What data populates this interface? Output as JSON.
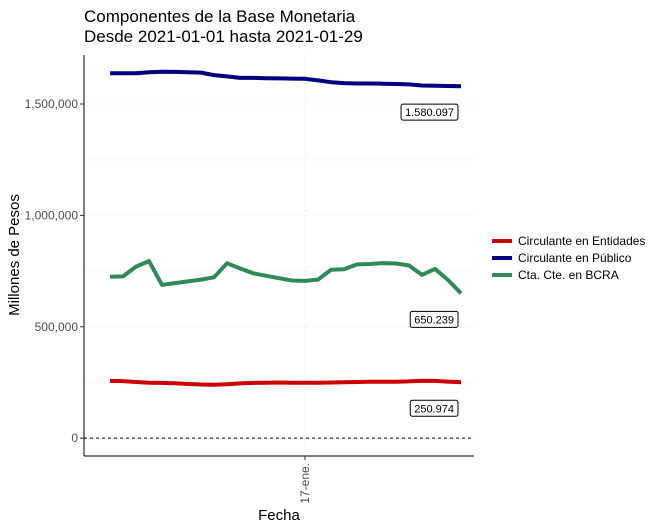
{
  "chart_data": {
    "type": "line",
    "title": "Componentes de la Base Monetaria",
    "subtitle": "Desde 2021-01-01 hasta 2021-01-29",
    "xlabel": "Fecha",
    "ylabel": "Millones de Pesos",
    "x_ticks": [
      {
        "date": "2021-01-17",
        "label": "17-ene."
      }
    ],
    "y_ticks": [
      {
        "value": 0,
        "label": "0"
      },
      {
        "value": 500000,
        "label": "500,000"
      },
      {
        "value": 1000000,
        "label": "1,000,000"
      },
      {
        "value": 1500000,
        "label": "1,500,000"
      }
    ],
    "xlim": [
      "2020-12-31",
      "2021-01-30"
    ],
    "ylim": [
      -80000,
      1720000
    ],
    "grid": "dotted major and minor horizontal and vertical lines",
    "zero_line": "dashed horizontal line at 0",
    "legend_position": "right",
    "series": [
      {
        "name": "Circulante en Entidades",
        "color": "#cc0000",
        "points": [
          [
            "2021-01-02",
            257000
          ],
          [
            "2021-01-03",
            256000
          ],
          [
            "2021-01-04",
            252000
          ],
          [
            "2021-01-05",
            249000
          ],
          [
            "2021-01-06",
            248000
          ],
          [
            "2021-01-07",
            247000
          ],
          [
            "2021-01-08",
            243000
          ],
          [
            "2021-01-09",
            241000
          ],
          [
            "2021-01-10",
            240000
          ],
          [
            "2021-01-11",
            242000
          ],
          [
            "2021-01-12",
            246000
          ],
          [
            "2021-01-13",
            248000
          ],
          [
            "2021-01-14",
            249000
          ],
          [
            "2021-01-15",
            250000
          ],
          [
            "2021-01-16",
            249000
          ],
          [
            "2021-01-17",
            249000
          ],
          [
            "2021-01-18",
            249000
          ],
          [
            "2021-01-19",
            250000
          ],
          [
            "2021-01-20",
            251000
          ],
          [
            "2021-01-21",
            252000
          ],
          [
            "2021-01-22",
            253000
          ],
          [
            "2021-01-23",
            253000
          ],
          [
            "2021-01-24",
            253000
          ],
          [
            "2021-01-25",
            255000
          ],
          [
            "2021-01-26",
            258000
          ],
          [
            "2021-01-27",
            257000
          ],
          [
            "2021-01-28",
            254000
          ],
          [
            "2021-01-29",
            250974
          ]
        ],
        "last_label": "250.974"
      },
      {
        "name": "Circulante en Público",
        "color": "#000080",
        "points": [
          [
            "2021-01-02",
            1638000
          ],
          [
            "2021-01-04",
            1638000
          ],
          [
            "2021-01-05",
            1643000
          ],
          [
            "2021-01-06",
            1645000
          ],
          [
            "2021-01-07",
            1644000
          ],
          [
            "2021-01-08",
            1643000
          ],
          [
            "2021-01-09",
            1641000
          ],
          [
            "2021-01-10",
            1630000
          ],
          [
            "2021-01-11",
            1624000
          ],
          [
            "2021-01-12",
            1617000
          ],
          [
            "2021-01-13",
            1617000
          ],
          [
            "2021-01-14",
            1616000
          ],
          [
            "2021-01-15",
            1615000
          ],
          [
            "2021-01-16",
            1614000
          ],
          [
            "2021-01-17",
            1613000
          ],
          [
            "2021-01-18",
            1606000
          ],
          [
            "2021-01-19",
            1598000
          ],
          [
            "2021-01-20",
            1594000
          ],
          [
            "2021-01-21",
            1592000
          ],
          [
            "2021-01-22",
            1592000
          ],
          [
            "2021-01-23",
            1591000
          ],
          [
            "2021-01-24",
            1590000
          ],
          [
            "2021-01-25",
            1588000
          ],
          [
            "2021-01-26",
            1583000
          ],
          [
            "2021-01-27",
            1582000
          ],
          [
            "2021-01-28",
            1581000
          ],
          [
            "2021-01-29",
            1580097
          ]
        ],
        "last_label": "1.580.097"
      },
      {
        "name": "Cta. Cte. en BCRA",
        "color": "#2e8b57",
        "points": [
          [
            "2021-01-02",
            725000
          ],
          [
            "2021-01-03",
            726000
          ],
          [
            "2021-01-04",
            770000
          ],
          [
            "2021-01-05",
            795000
          ],
          [
            "2021-01-06",
            688000
          ],
          [
            "2021-01-09",
            712000
          ],
          [
            "2021-01-10",
            722000
          ],
          [
            "2021-01-11",
            785000
          ],
          [
            "2021-01-12",
            762000
          ],
          [
            "2021-01-13",
            740000
          ],
          [
            "2021-01-15",
            718000
          ],
          [
            "2021-01-16",
            708000
          ],
          [
            "2021-01-17",
            706000
          ],
          [
            "2021-01-18",
            712000
          ],
          [
            "2021-01-19",
            756000
          ],
          [
            "2021-01-20",
            758000
          ],
          [
            "2021-01-21",
            780000
          ],
          [
            "2021-01-22",
            782000
          ],
          [
            "2021-01-23",
            786000
          ],
          [
            "2021-01-24",
            784000
          ],
          [
            "2021-01-25",
            775000
          ],
          [
            "2021-01-26",
            733000
          ],
          [
            "2021-01-27",
            760000
          ],
          [
            "2021-01-28",
            710000
          ],
          [
            "2021-01-29",
            650239
          ]
        ],
        "last_label": "650.239"
      }
    ]
  }
}
